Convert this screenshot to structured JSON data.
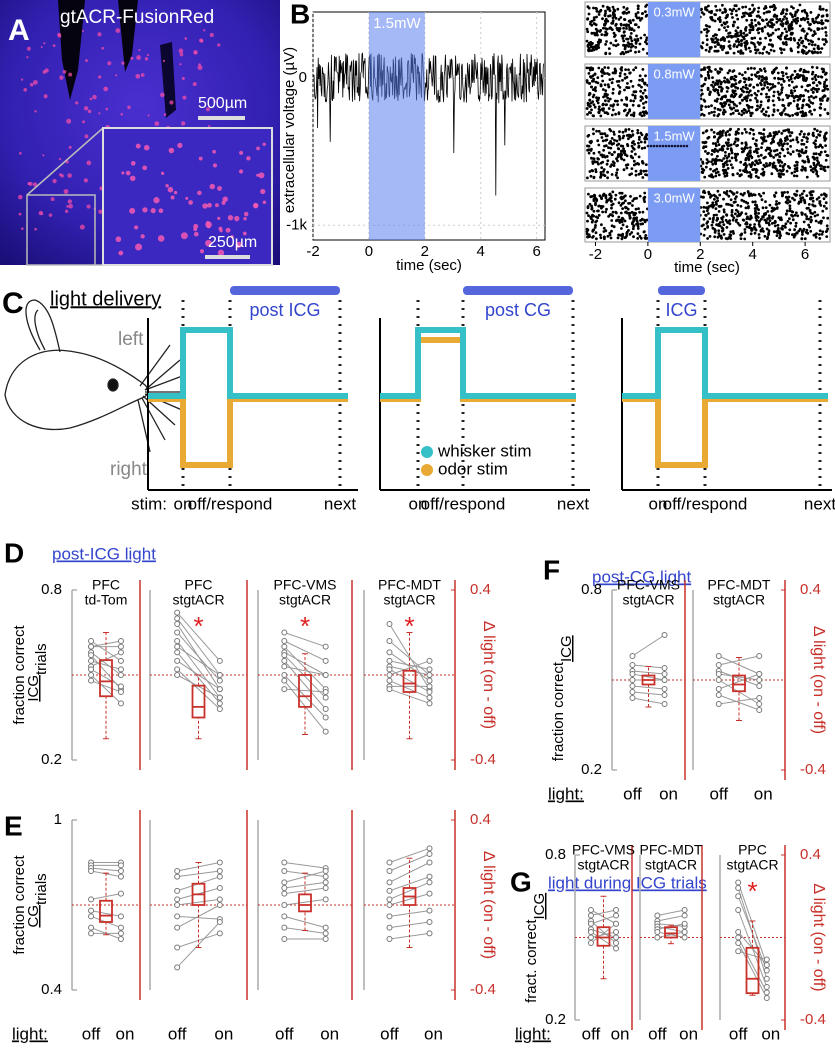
{
  "panel_a": {
    "label": "A",
    "title": "gtACR-FusionRed",
    "scale_main": "500µm",
    "scale_inset": "250µm"
  },
  "panel_b": {
    "label": "B",
    "trace": {
      "stim_label": "1.5mW",
      "stim_window": [
        0,
        2
      ],
      "ylabel": "extracellular voltage (µV)",
      "xlabel": "time (sec)",
      "xlim": [
        -2,
        6.3
      ],
      "ylim": [
        -1100,
        450
      ],
      "xticks": [
        -2,
        0,
        2,
        4,
        6
      ],
      "yticks": [
        0,
        {
          "value": -1000,
          "label": "-1k"
        }
      ]
    },
    "raster": {
      "rows": [
        "0.3mW",
        "0.8mW",
        "1.5mW",
        "3.0mW"
      ],
      "stim_window": [
        0,
        2
      ],
      "xlabel": "time (sec)",
      "xlim": [
        -2.4,
        6.95
      ],
      "xticks": [
        -2,
        0,
        2,
        4,
        6
      ]
    }
  },
  "panel_c": {
    "label": "C",
    "header": "light delivery",
    "left": "left",
    "right": "right",
    "stim_prefix": "stim:",
    "events": [
      "on",
      "off/respond",
      "next"
    ],
    "windows": [
      "post ICG",
      "post CG",
      "ICG"
    ],
    "legend": [
      {
        "name": "whisker stim",
        "color": "#35c0c8"
      },
      {
        "name": "odor stim",
        "color": "#e8aa35"
      }
    ]
  },
  "panel_d": {
    "label": "D",
    "title": "post-ICG light",
    "ylabel": [
      "fraction correct",
      "ICG",
      "trials"
    ],
    "ylim": [
      0.2,
      0.8
    ],
    "yticks": [
      0.8,
      0.2
    ],
    "y2label": "Δ light (on - off)",
    "y2lim": [
      -0.4,
      0.4
    ],
    "y2ticks": [
      0.4,
      -0.4
    ],
    "subplots": [
      {
        "title": [
          "PFC",
          "td-Tom"
        ],
        "off": [
          0.62,
          0.6,
          0.58,
          0.57,
          0.55,
          0.53,
          0.5,
          0.48,
          0.6,
          0.52
        ],
        "on": [
          0.55,
          0.6,
          0.5,
          0.45,
          0.52,
          0.58,
          0.4,
          0.44,
          0.62,
          0.46
        ],
        "delta_box": [
          -0.3,
          -0.1,
          -0.03,
          0.07,
          0.2
        ]
      },
      {
        "title": [
          "PFC",
          "stgtACR"
        ],
        "off": [
          0.72,
          0.7,
          0.68,
          0.65,
          0.62,
          0.6,
          0.58,
          0.55,
          0.52,
          0.5
        ],
        "on": [
          0.55,
          0.5,
          0.45,
          0.48,
          0.42,
          0.5,
          0.4,
          0.45,
          0.38,
          0.42
        ],
        "delta_box": [
          -0.3,
          -0.2,
          -0.15,
          -0.05,
          0.0
        ],
        "significance": "*"
      },
      {
        "title": [
          "PFC-VMS",
          "stgtACR"
        ],
        "off": [
          0.65,
          0.62,
          0.6,
          0.58,
          0.57,
          0.55,
          0.53,
          0.5,
          0.48,
          0.45
        ],
        "on": [
          0.6,
          0.55,
          0.45,
          0.5,
          0.42,
          0.38,
          0.5,
          0.35,
          0.3,
          0.44
        ],
        "delta_box": [
          -0.28,
          -0.15,
          -0.1,
          0.0,
          0.1
        ],
        "significance": "*"
      },
      {
        "title": [
          "PFC-MDT",
          "stgtACR"
        ],
        "off": [
          0.68,
          0.62,
          0.58,
          0.55,
          0.53,
          0.52,
          0.5,
          0.48,
          0.46,
          0.45
        ],
        "on": [
          0.45,
          0.5,
          0.48,
          0.52,
          0.5,
          0.44,
          0.55,
          0.42,
          0.46,
          0.4
        ],
        "delta_box": [
          -0.3,
          -0.08,
          -0.04,
          0.02,
          0.2
        ],
        "significance": "*"
      }
    ]
  },
  "panel_e": {
    "label": "E",
    "ylabel": [
      "fraction correct",
      "CG",
      "trials"
    ],
    "ylim": [
      0.4,
      1
    ],
    "yticks": [
      1,
      0.4
    ],
    "y2label": "Δ light (on - off)",
    "y2lim": [
      -0.4,
      0.4
    ],
    "y2ticks": [
      0.4,
      -0.4
    ],
    "light": "light:",
    "light_levels": [
      "off",
      "on"
    ],
    "subplots": [
      {
        "off": [
          0.85,
          0.84,
          0.83,
          0.82,
          0.72,
          0.68,
          0.66,
          0.62,
          0.6
        ],
        "on": [
          0.85,
          0.84,
          0.82,
          0.8,
          0.74,
          0.66,
          0.62,
          0.58,
          0.6
        ],
        "delta_box": [
          -0.14,
          -0.08,
          -0.05,
          0.02,
          0.15
        ]
      },
      {
        "off": [
          0.82,
          0.8,
          0.75,
          0.72,
          0.7,
          0.66,
          0.62,
          0.55,
          0.48
        ],
        "on": [
          0.85,
          0.82,
          0.8,
          0.76,
          0.72,
          0.65,
          0.7,
          0.6,
          0.64
        ],
        "delta_box": [
          -0.2,
          0.0,
          0.05,
          0.1,
          0.2
        ]
      },
      {
        "off": [
          0.85,
          0.82,
          0.78,
          0.76,
          0.74,
          0.7,
          0.66,
          0.62,
          0.58
        ],
        "on": [
          0.83,
          0.8,
          0.82,
          0.78,
          0.76,
          0.72,
          0.62,
          0.6,
          0.58
        ],
        "delta_box": [
          -0.12,
          -0.03,
          0.0,
          0.05,
          0.15
        ]
      },
      {
        "off": [
          0.85,
          0.82,
          0.78,
          0.75,
          0.72,
          0.7,
          0.66,
          0.62,
          0.58
        ],
        "on": [
          0.9,
          0.88,
          0.85,
          0.8,
          0.78,
          0.74,
          0.68,
          0.64,
          0.6
        ],
        "delta_box": [
          -0.2,
          0.0,
          0.04,
          0.08,
          0.22
        ]
      }
    ]
  },
  "panel_f": {
    "label": "F",
    "title": "post-CG light",
    "ylabel": [
      "fraction correct",
      "ICG"
    ],
    "ylim": [
      0.2,
      0.8
    ],
    "yticks": [
      0.8,
      0.2
    ],
    "y2label": "Δ light (on - off)",
    "y2lim": [
      -0.4,
      0.4
    ],
    "y2ticks": [
      0.4,
      -0.4
    ],
    "light": "light:",
    "light_levels": [
      "off",
      "on"
    ],
    "subplots": [
      {
        "title": [
          "PFC-VMS",
          "stgtACR"
        ],
        "off": [
          0.58,
          0.55,
          0.53,
          0.52,
          0.5,
          0.48,
          0.46,
          0.44
        ],
        "on": [
          0.65,
          0.54,
          0.52,
          0.5,
          0.5,
          0.47,
          0.45,
          0.42
        ],
        "delta_box": [
          -0.12,
          -0.02,
          0.0,
          0.02,
          0.06
        ]
      },
      {
        "title": [
          "PFC-MDT",
          "stgtACR"
        ],
        "off": [
          0.58,
          0.55,
          0.53,
          0.52,
          0.5,
          0.47,
          0.45,
          0.42
        ],
        "on": [
          0.52,
          0.58,
          0.48,
          0.5,
          0.42,
          0.52,
          0.4,
          0.44
        ],
        "delta_box": [
          -0.18,
          -0.05,
          -0.02,
          0.02,
          0.1
        ]
      }
    ]
  },
  "panel_g": {
    "label": "G",
    "title": "light during ICG trials",
    "ylabel": [
      "fract. correct",
      "ICG"
    ],
    "ylim": [
      0.2,
      0.8
    ],
    "yticks": [
      0.8,
      0.2
    ],
    "y2label": "Δ light (on - off)",
    "y2lim": [
      -0.4,
      0.4
    ],
    "y2ticks": [
      0.4,
      -0.4
    ],
    "light": "light:",
    "light_levels": [
      "off",
      "on"
    ],
    "subplots": [
      {
        "title": [
          "PFC-VMS",
          "stgtACR"
        ],
        "off": [
          0.6,
          0.58,
          0.56,
          0.55,
          0.53,
          0.52,
          0.5,
          0.48
        ],
        "on": [
          0.55,
          0.6,
          0.48,
          0.58,
          0.5,
          0.46,
          0.52,
          0.55
        ],
        "delta_box": [
          -0.2,
          -0.04,
          0.0,
          0.05,
          0.2
        ]
      },
      {
        "title": [
          "PFC-MDT",
          "stgtACR"
        ],
        "off": [
          0.58,
          0.56,
          0.55,
          0.54,
          0.53,
          0.52,
          0.5
        ],
        "on": [
          0.6,
          0.58,
          0.54,
          0.52,
          0.55,
          0.5,
          0.52
        ],
        "delta_box": [
          -0.03,
          0.0,
          0.02,
          0.05,
          0.06
        ]
      },
      {
        "title": [
          "PPC",
          "stgtACR"
        ],
        "off": [
          0.7,
          0.68,
          0.65,
          0.6,
          0.52,
          0.5,
          0.48,
          0.45
        ],
        "on": [
          0.4,
          0.35,
          0.38,
          0.32,
          0.4,
          0.3,
          0.28,
          0.42
        ],
        "delta_box": [
          -0.28,
          -0.27,
          -0.2,
          -0.05,
          0.08
        ],
        "significance": "*"
      }
    ]
  }
}
